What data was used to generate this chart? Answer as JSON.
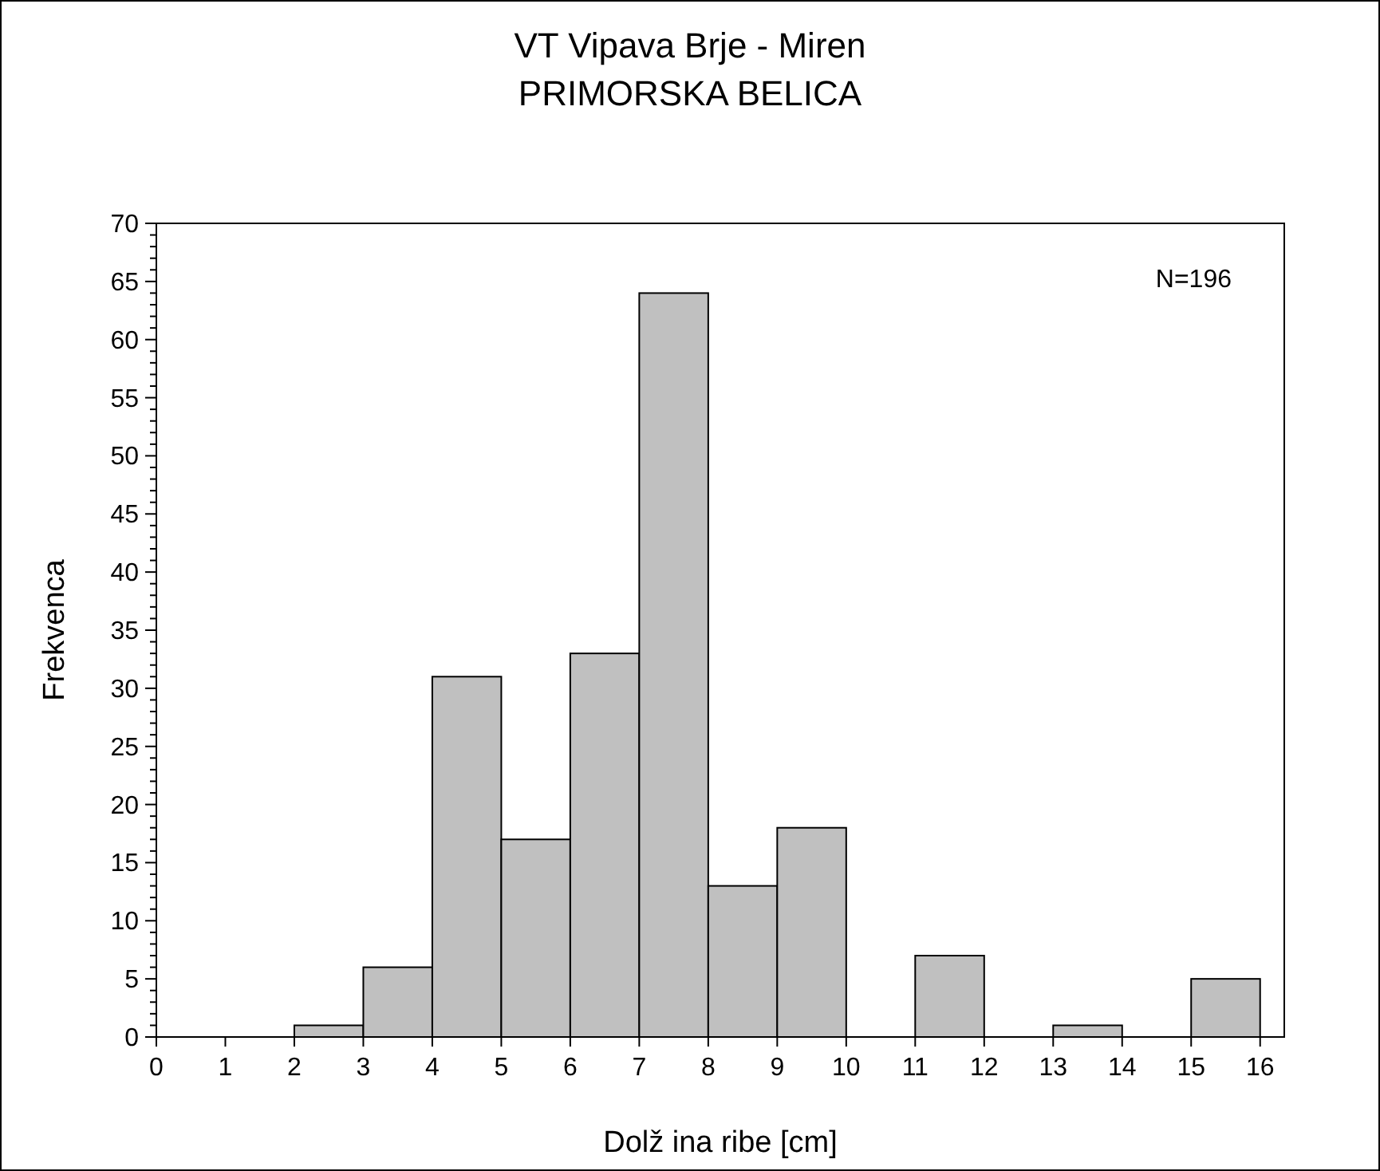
{
  "chart_data": {
    "type": "histogram",
    "title": "VT Vipava Brje - Miren",
    "subtitle": "PRIMORSKA BELICA",
    "xlabel": "Dolž ina ribe [cm]",
    "ylabel": "Frekvenca",
    "annotations": [
      "N=196"
    ],
    "bins": [
      0,
      1,
      2,
      3,
      4,
      5,
      6,
      7,
      8,
      9,
      10,
      11,
      12,
      13,
      14,
      15,
      16
    ],
    "values": [
      0,
      0,
      1,
      6,
      31,
      17,
      33,
      64,
      13,
      18,
      0,
      7,
      0,
      1,
      0,
      5
    ],
    "color": "#c0c0c0",
    "xlim": [
      0,
      16.35
    ],
    "ylim": [
      0,
      70
    ],
    "xticks": [
      0,
      1,
      2,
      3,
      4,
      5,
      6,
      7,
      8,
      9,
      10,
      11,
      12,
      13,
      14,
      15,
      16
    ],
    "yticks": [
      0,
      {
        "value": 1,
        "label": null
      },
      {
        "value": 2,
        "label": null
      },
      {
        "value": 3,
        "label": null
      },
      {
        "value": 4,
        "label": null
      },
      5,
      {
        "value": 6,
        "label": null
      },
      {
        "value": 7,
        "label": null
      },
      {
        "value": 8,
        "label": null
      },
      {
        "value": 9,
        "label": null
      },
      10,
      {
        "value": 11,
        "label": null
      },
      {
        "value": 12,
        "label": null
      },
      {
        "value": 13,
        "label": null
      },
      {
        "value": 14,
        "label": null
      },
      15,
      {
        "value": 16,
        "label": null
      },
      {
        "value": 17,
        "label": null
      },
      {
        "value": 18,
        "label": null
      },
      {
        "value": 19,
        "label": null
      },
      20,
      {
        "value": 21,
        "label": null
      },
      {
        "value": 22,
        "label": null
      },
      {
        "value": 23,
        "label": null
      },
      {
        "value": 24,
        "label": null
      },
      25,
      {
        "value": 26,
        "label": null
      },
      {
        "value": 27,
        "label": null
      },
      {
        "value": 28,
        "label": null
      },
      {
        "value": 29,
        "label": null
      },
      30,
      {
        "value": 31,
        "label": null
      },
      {
        "value": 32,
        "label": null
      },
      {
        "value": 33,
        "label": null
      },
      {
        "value": 34,
        "label": null
      },
      35,
      {
        "value": 36,
        "label": null
      },
      {
        "value": 37,
        "label": null
      },
      {
        "value": 38,
        "label": null
      },
      {
        "value": 39,
        "label": null
      },
      40,
      {
        "value": 41,
        "label": null
      },
      {
        "value": 42,
        "label": null
      },
      {
        "value": 43,
        "label": null
      },
      {
        "value": 44,
        "label": null
      },
      45,
      {
        "value": 46,
        "label": null
      },
      {
        "value": 47,
        "label": null
      },
      {
        "value": 48,
        "label": null
      },
      {
        "value": 49,
        "label": null
      },
      50,
      {
        "value": 51,
        "label": null
      },
      {
        "value": 52,
        "label": null
      },
      {
        "value": 53,
        "label": null
      },
      {
        "value": 54,
        "label": null
      },
      55,
      {
        "value": 56,
        "label": null
      },
      {
        "value": 57,
        "label": null
      },
      {
        "value": 58,
        "label": null
      },
      {
        "value": 59,
        "label": null
      },
      60,
      {
        "value": 61,
        "label": null
      },
      {
        "value": 62,
        "label": null
      },
      {
        "value": 63,
        "label": null
      },
      {
        "value": 64,
        "label": null
      },
      65,
      {
        "value": 66,
        "label": null
      },
      {
        "value": 67,
        "label": null
      },
      {
        "value": 68,
        "label": null
      },
      {
        "value": 69,
        "label": null
      },
      70
    ],
    "grid": false
  }
}
